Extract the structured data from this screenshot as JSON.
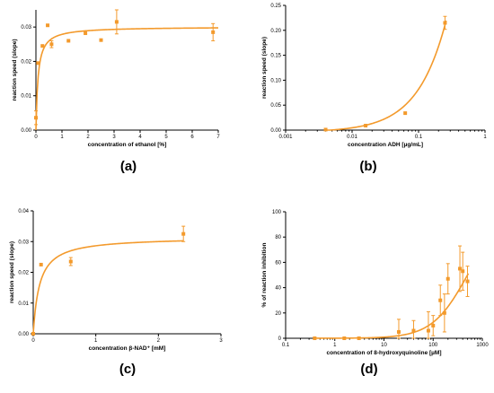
{
  "colors": {
    "series": "#f39a2c",
    "axis": "#000000"
  },
  "chart_data": [
    {
      "id": "a",
      "type": "scatter",
      "panel_label": "(a)",
      "xlabel": "concentration of ethanol [%]",
      "ylabel": "reaction speed (slope)",
      "xlim": [
        0,
        7
      ],
      "ylim": [
        0,
        0.035
      ],
      "xscale": "linear",
      "yscale": "linear",
      "xticks": [
        0,
        1,
        2,
        3,
        4,
        5,
        6,
        7
      ],
      "xtick_labels": [
        "0",
        "1",
        "2",
        "3",
        "4",
        "5",
        "6",
        "7"
      ],
      "yticks": [
        0,
        0.01,
        0.02,
        0.03
      ],
      "ytick_labels": [
        "0.00",
        "0.01",
        "0.02",
        "0.03"
      ],
      "points": [
        {
          "x": 0.0,
          "y": 0.0036,
          "err": 0.002
        },
        {
          "x": 0.08,
          "y": 0.0195,
          "err": 0
        },
        {
          "x": 0.25,
          "y": 0.0245,
          "err": 0
        },
        {
          "x": 0.45,
          "y": 0.0305,
          "err": 0
        },
        {
          "x": 0.6,
          "y": 0.025,
          "err": 0.001
        },
        {
          "x": 1.25,
          "y": 0.026,
          "err": 0
        },
        {
          "x": 1.9,
          "y": 0.0282,
          "err": 0
        },
        {
          "x": 2.5,
          "y": 0.0262,
          "err": 0
        },
        {
          "x": 3.1,
          "y": 0.0315,
          "err": 0.0035
        },
        {
          "x": 6.8,
          "y": 0.0285,
          "err": 0.0025
        }
      ],
      "fit": {
        "model": "michaelis-menten",
        "vmax": 0.0301,
        "km": 0.08
      }
    },
    {
      "id": "b",
      "type": "scatter",
      "panel_label": "(b)",
      "xlabel": "concentration ADH [µg/mL]",
      "ylabel": "reaction speed (slope)",
      "xlim": [
        0.001,
        1
      ],
      "ylim": [
        0,
        0.25
      ],
      "xscale": "log",
      "yscale": "linear",
      "xticks": [
        0.001,
        0.01,
        0.1,
        1
      ],
      "xtick_labels": [
        "0.001",
        "0.01",
        "0.1",
        "1"
      ],
      "yticks": [
        0,
        0.05,
        0.1,
        0.15,
        0.2,
        0.25
      ],
      "ytick_labels": [
        "0.00",
        "0.05",
        "0.10",
        "0.15",
        "0.20",
        "0.25"
      ],
      "points": [
        {
          "x": 0.004,
          "y": 0.001,
          "err": 0
        },
        {
          "x": 0.016,
          "y": 0.009,
          "err": 0
        },
        {
          "x": 0.063,
          "y": 0.034,
          "err": 0
        },
        {
          "x": 0.25,
          "y": 0.215,
          "err": 0.013
        }
      ],
      "fit": {
        "model": "linear",
        "slope": 0.86,
        "intercept": -0.004
      }
    },
    {
      "id": "c",
      "type": "scatter",
      "panel_label": "(c)",
      "xlabel": "concentration β-NAD⁺ [mM]",
      "ylabel": "reaction speed (slope)",
      "xlim": [
        0,
        3
      ],
      "ylim": [
        0,
        0.04
      ],
      "xscale": "linear",
      "yscale": "linear",
      "xticks": [
        0,
        1,
        2,
        3
      ],
      "xtick_labels": [
        "0",
        "1",
        "2",
        "3"
      ],
      "yticks": [
        0,
        0.01,
        0.02,
        0.03,
        0.04
      ],
      "ytick_labels": [
        "0.00",
        "0.01",
        "0.02",
        "0.03",
        "0.04"
      ],
      "points": [
        {
          "x": 0.0,
          "y": 0.0,
          "err": 0
        },
        {
          "x": 0.125,
          "y": 0.0225,
          "err": 0
        },
        {
          "x": 0.6,
          "y": 0.0235,
          "err": 0.0013
        },
        {
          "x": 2.4,
          "y": 0.0325,
          "err": 0.0025
        }
      ],
      "fit": {
        "model": "michaelis-menten",
        "vmax": 0.0315,
        "km": 0.1
      }
    },
    {
      "id": "d",
      "type": "scatter",
      "panel_label": "(d)",
      "xlabel": "concentration of 8-hydroxyquinoline [µM]",
      "ylabel": "% of reaction inhibition",
      "xlim": [
        0.1,
        1000
      ],
      "ylim": [
        0,
        100
      ],
      "xscale": "log",
      "yscale": "linear",
      "xticks": [
        0.1,
        1,
        10,
        100,
        1000
      ],
      "xtick_labels": [
        "0.1",
        "1",
        "10",
        "100",
        "1000"
      ],
      "yticks": [
        0,
        20,
        40,
        60,
        80,
        100
      ],
      "ytick_labels": [
        "0",
        "20",
        "40",
        "60",
        "80",
        "100"
      ],
      "points": [
        {
          "x": 0.39,
          "y": 0,
          "err": 0
        },
        {
          "x": 1.56,
          "y": 0,
          "err": 0
        },
        {
          "x": 3.1,
          "y": 0,
          "err": 0
        },
        {
          "x": 20,
          "y": 5,
          "err": 10
        },
        {
          "x": 40,
          "y": 6,
          "err": 8
        },
        {
          "x": 80,
          "y": 6,
          "err": 15
        },
        {
          "x": 100,
          "y": 10,
          "err": 8
        },
        {
          "x": 140,
          "y": 30,
          "err": 12
        },
        {
          "x": 170,
          "y": 20,
          "err": 15
        },
        {
          "x": 200,
          "y": 47,
          "err": 12
        },
        {
          "x": 350,
          "y": 55,
          "err": 18
        },
        {
          "x": 400,
          "y": 53,
          "err": 15
        },
        {
          "x": 500,
          "y": 45,
          "err": 12
        }
      ],
      "fit": {
        "model": "hill",
        "top": 100,
        "ic50": 500,
        "n": 1.2
      }
    }
  ]
}
